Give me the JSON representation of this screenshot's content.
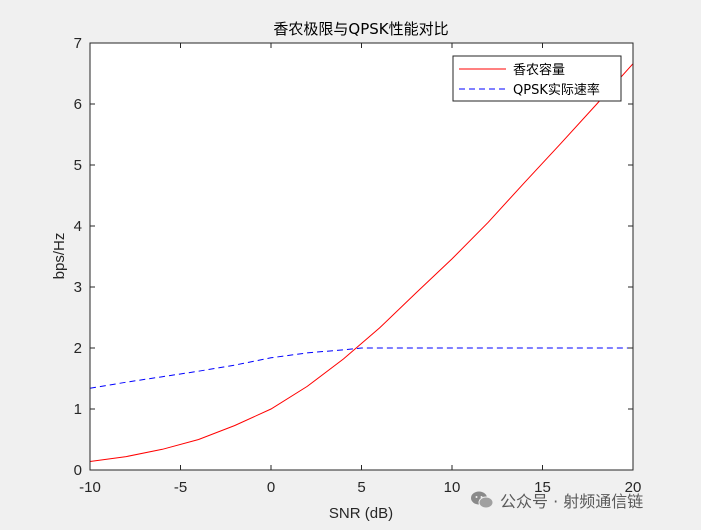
{
  "chart_data": {
    "type": "line",
    "title": "香农极限与QPSK性能对比",
    "xlabel": "SNR (dB)",
    "ylabel": "bps/Hz",
    "xlim": [
      -10,
      20
    ],
    "ylim": [
      0,
      7
    ],
    "xticks": [
      -10,
      -5,
      0,
      5,
      10,
      15,
      20
    ],
    "yticks": [
      0,
      1,
      2,
      3,
      4,
      5,
      6,
      7
    ],
    "grid": false,
    "legend_position": "top-right",
    "series": [
      {
        "name": "香农容量",
        "color": "#ff0000",
        "style": "solid",
        "x": [
          -10,
          -8,
          -6,
          -4,
          -2,
          0,
          2,
          4,
          6,
          8,
          10,
          12,
          14,
          16,
          18,
          20
        ],
        "values": [
          0.14,
          0.22,
          0.34,
          0.5,
          0.73,
          1.0,
          1.37,
          1.82,
          2.33,
          2.9,
          3.46,
          4.06,
          4.71,
          5.35,
          6.0,
          6.66
        ]
      },
      {
        "name": "QPSK实际速率",
        "color": "#0000ff",
        "style": "dashed",
        "x": [
          -10,
          -8,
          -6,
          -4,
          -2,
          0,
          2,
          4,
          5,
          6,
          8,
          10,
          12,
          14,
          16,
          18,
          20
        ],
        "values": [
          1.34,
          1.44,
          1.53,
          1.62,
          1.72,
          1.84,
          1.92,
          1.97,
          2.0,
          2.0,
          2.0,
          2.0,
          2.0,
          2.0,
          2.0,
          2.0,
          2.0
        ]
      }
    ]
  },
  "watermark": {
    "text": "公众号 · 射频通信链",
    "icon": "wechat-icon"
  }
}
